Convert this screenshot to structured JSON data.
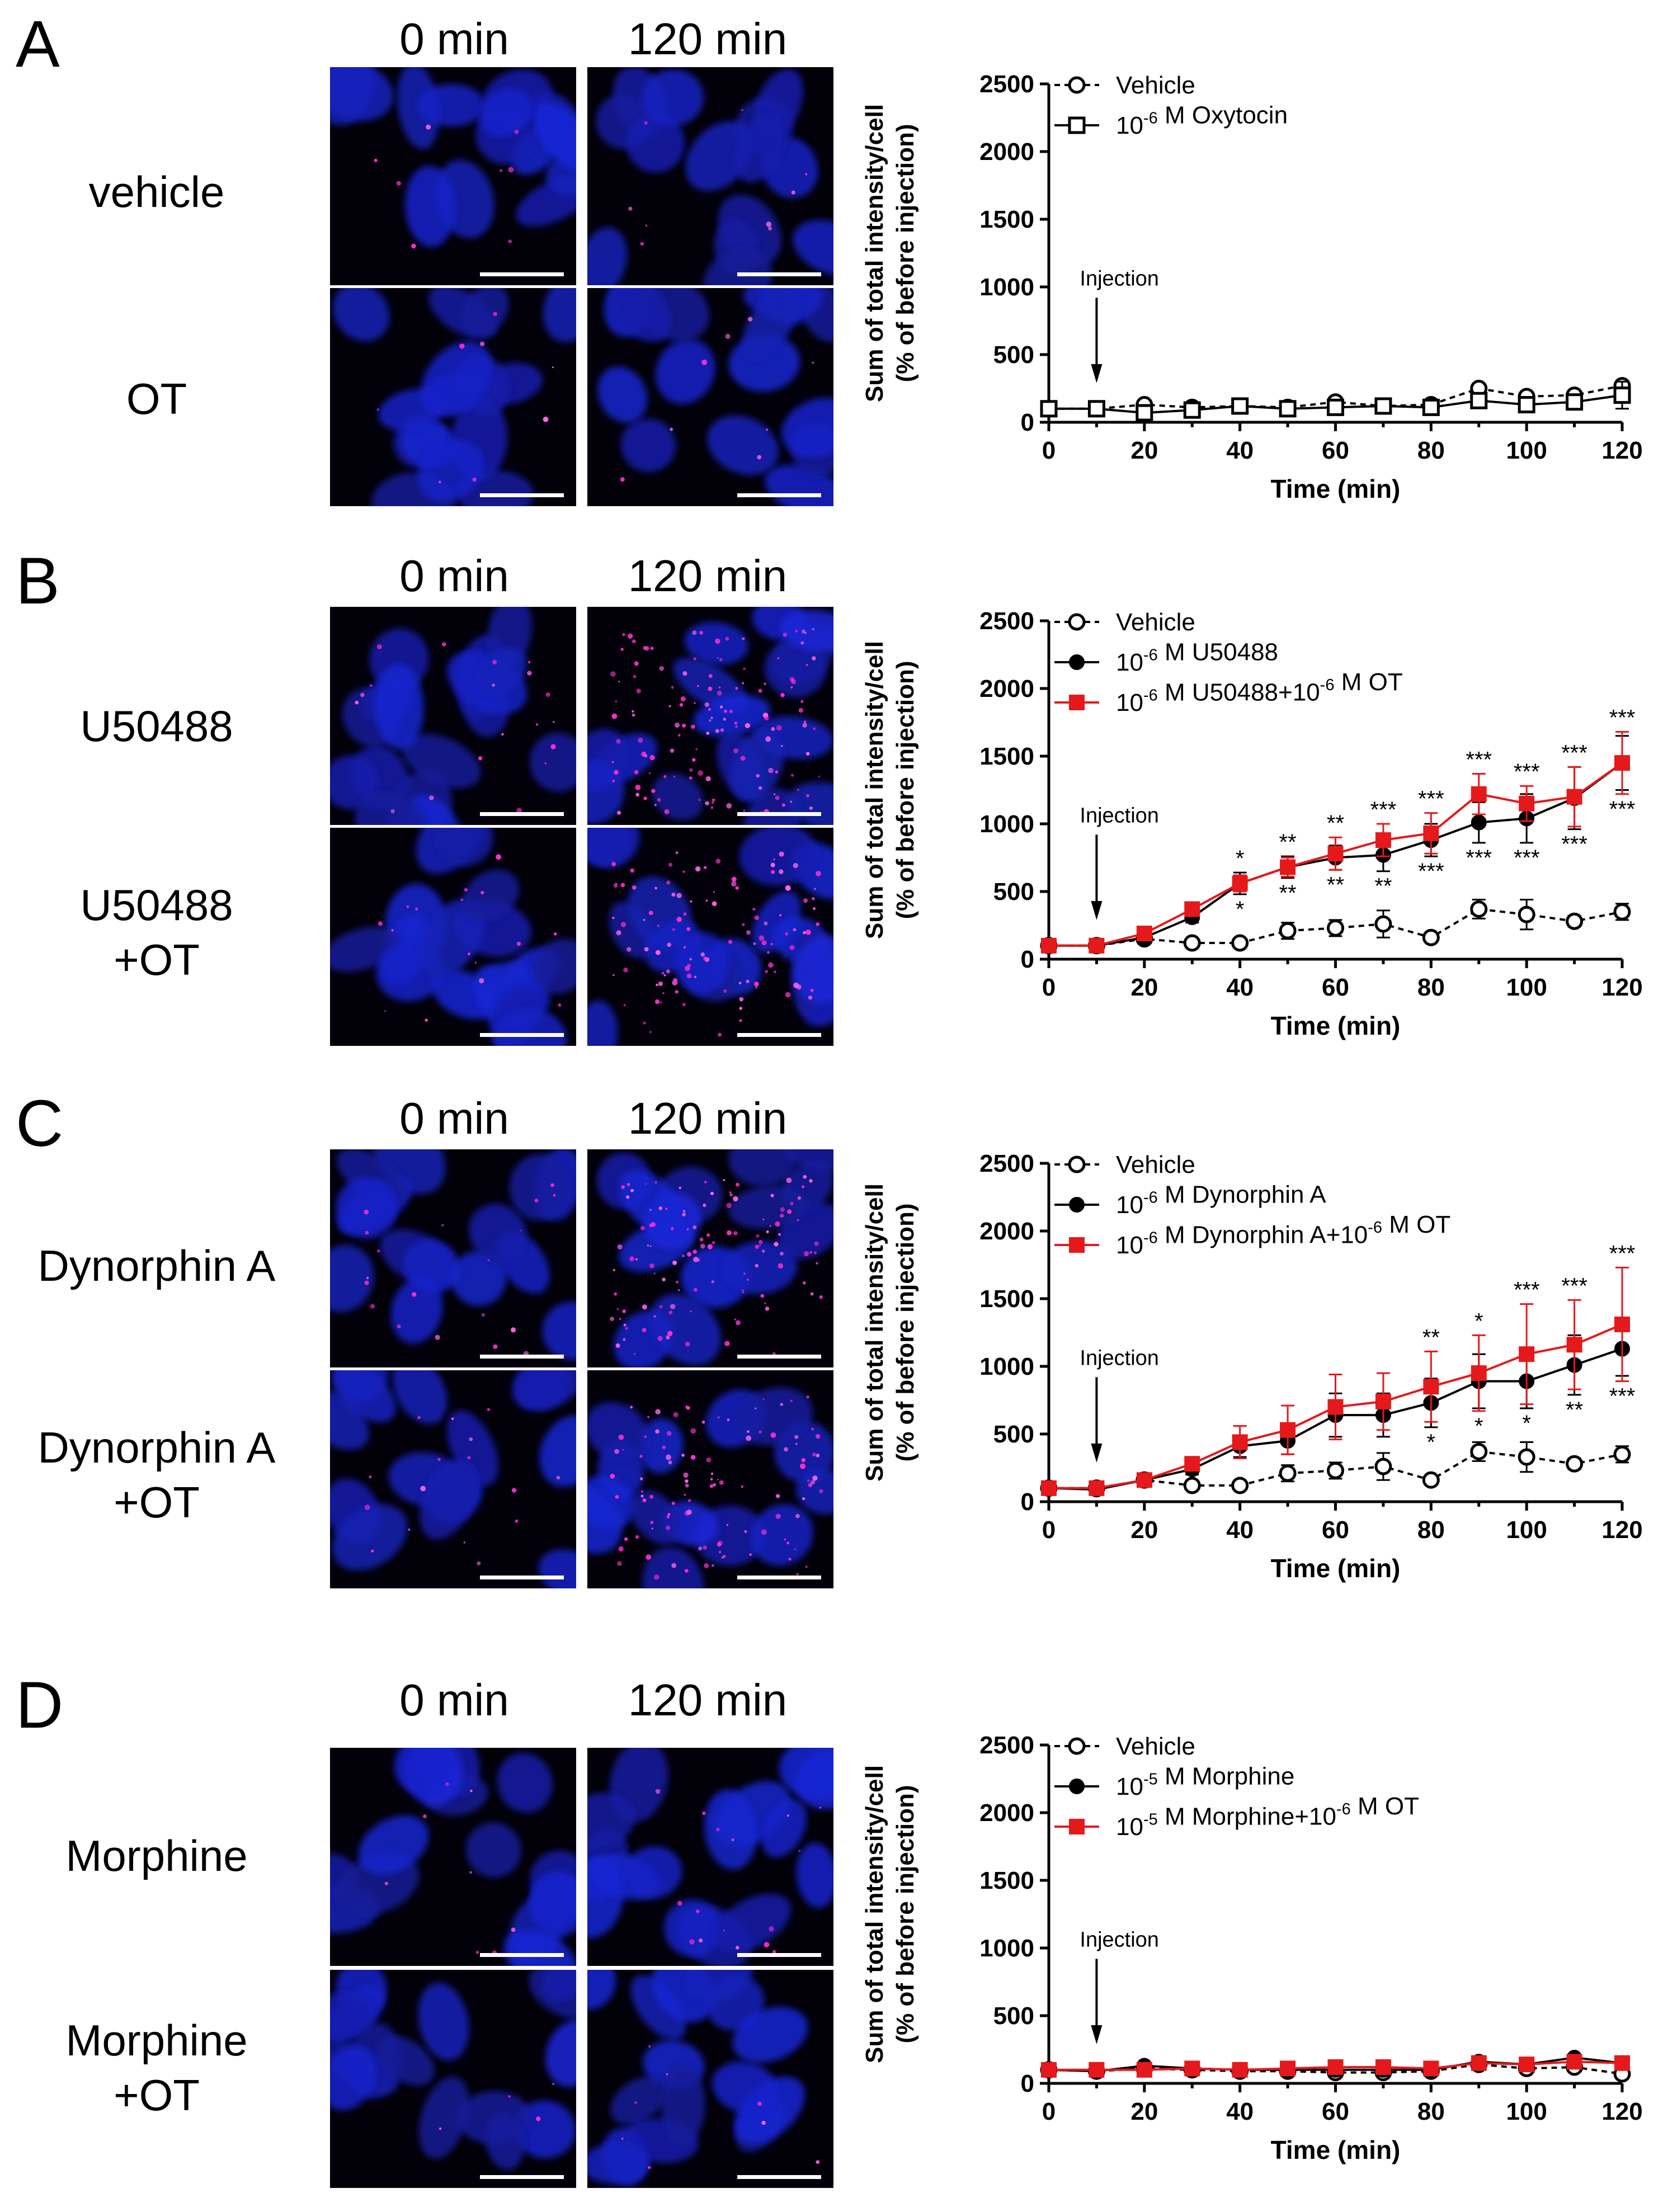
{
  "panels": [
    {
      "letter": "A",
      "col_labels": [
        "0 min",
        "120 min"
      ],
      "rows": [
        {
          "label_lines": [
            "vehicle"
          ],
          "puncta": [
            0.05,
            0.06
          ]
        },
        {
          "label_lines": [
            "OT"
          ],
          "puncta": [
            0.05,
            0.05
          ]
        }
      ]
    },
    {
      "letter": "B",
      "col_labels": [
        "0 min",
        "120 min"
      ],
      "rows": [
        {
          "label_lines": [
            "U50488"
          ],
          "puncta": [
            0.12,
            0.85
          ]
        },
        {
          "label_lines": [
            "U50488",
            "+OT"
          ],
          "puncta": [
            0.1,
            0.7
          ]
        }
      ]
    },
    {
      "letter": "C",
      "col_labels": [
        "0 min",
        "120 min"
      ],
      "rows": [
        {
          "label_lines": [
            "Dynorphin A"
          ],
          "puncta": [
            0.12,
            0.75
          ]
        },
        {
          "label_lines": [
            "Dynorphin A",
            "+OT"
          ],
          "puncta": [
            0.1,
            0.65
          ]
        }
      ]
    },
    {
      "letter": "D",
      "col_labels": [
        "0 min",
        "120 min"
      ],
      "rows": [
        {
          "label_lines": [
            "Morphine"
          ],
          "puncta": [
            0.05,
            0.1
          ]
        },
        {
          "label_lines": [
            "Morphine",
            "+OT"
          ],
          "puncta": [
            0.03,
            0.05
          ]
        }
      ]
    }
  ],
  "chart_data": [
    {
      "type": "line",
      "xlabel": "Time (min)",
      "ylabel": [
        "Sum of total intensity/cell",
        "(% of before injection)"
      ],
      "xlim": [
        0,
        120
      ],
      "ylim": [
        0,
        2500
      ],
      "xticks": [
        0,
        20,
        40,
        60,
        80,
        100,
        120
      ],
      "yticks": [
        0,
        500,
        1000,
        1500,
        2000,
        2500
      ],
      "x": [
        0,
        10,
        20,
        30,
        40,
        50,
        60,
        70,
        80,
        90,
        100,
        110,
        120
      ],
      "annotation": "Injection",
      "annotation_x": 10,
      "legend_position": "top-left",
      "series": [
        {
          "name": "Vehicle",
          "marker": "open-circle",
          "line": "dashed",
          "color": "#000000",
          "values": [
            100,
            100,
            130,
            110,
            120,
            110,
            150,
            120,
            130,
            250,
            190,
            200,
            270
          ],
          "errors": [
            0,
            0,
            10,
            10,
            10,
            10,
            15,
            10,
            10,
            30,
            20,
            20,
            25
          ]
        },
        {
          "name": "Oxytocin",
          "legend_text": "10^-6 M Oxytocin",
          "marker": "open-square",
          "line": "solid",
          "color": "#000000",
          "values": [
            100,
            100,
            70,
            90,
            120,
            100,
            110,
            120,
            110,
            160,
            130,
            150,
            200
          ],
          "errors": [
            0,
            0,
            10,
            10,
            10,
            10,
            10,
            10,
            10,
            20,
            20,
            20,
            100
          ]
        }
      ],
      "significance": []
    },
    {
      "type": "line",
      "xlabel": "Time (min)",
      "ylabel": [
        "Sum of total intensity/cell",
        "(% of before injection)"
      ],
      "xlim": [
        0,
        120
      ],
      "ylim": [
        0,
        2500
      ],
      "xticks": [
        0,
        20,
        40,
        60,
        80,
        100,
        120
      ],
      "yticks": [
        0,
        500,
        1000,
        1500,
        2000,
        2500
      ],
      "x": [
        0,
        10,
        20,
        30,
        40,
        50,
        60,
        70,
        80,
        90,
        100,
        110,
        120
      ],
      "annotation": "Injection",
      "annotation_x": 10,
      "legend_position": "top-left",
      "series": [
        {
          "name": "Vehicle",
          "marker": "open-circle",
          "line": "dashed",
          "color": "#000000",
          "values": [
            100,
            100,
            150,
            120,
            120,
            210,
            230,
            260,
            160,
            370,
            330,
            280,
            350
          ],
          "errors": [
            10,
            10,
            20,
            20,
            20,
            60,
            60,
            100,
            30,
            70,
            110,
            40,
            60
          ]
        },
        {
          "name": "U50488",
          "legend_text": "10^-6 M U50488",
          "marker": "filled-circle",
          "line": "solid",
          "color": "#000000",
          "values": [
            100,
            100,
            160,
            310,
            560,
            680,
            750,
            770,
            880,
            1010,
            1040,
            1190,
            1450
          ],
          "errors": [
            10,
            10,
            20,
            40,
            80,
            80,
            90,
            120,
            120,
            150,
            180,
            230,
            200
          ]
        },
        {
          "name": "U50488+OT",
          "legend_text": "10^-6 M U50488+10^-6 M OT",
          "marker": "filled-square",
          "line": "solid",
          "color": "#e5191b",
          "values": [
            100,
            100,
            190,
            370,
            560,
            680,
            780,
            880,
            930,
            1220,
            1150,
            1200,
            1450
          ],
          "errors": [
            10,
            10,
            20,
            40,
            60,
            70,
            120,
            120,
            150,
            150,
            130,
            220,
            230
          ]
        }
      ],
      "significance": [
        {
          "x": 40,
          "above": "*",
          "below": "*"
        },
        {
          "x": 50,
          "above": "**",
          "below": "**"
        },
        {
          "x": 60,
          "above": "**",
          "below": "**"
        },
        {
          "x": 70,
          "above": "***",
          "below": "**"
        },
        {
          "x": 80,
          "above": "***",
          "below": "***"
        },
        {
          "x": 90,
          "above": "***",
          "below": "***"
        },
        {
          "x": 100,
          "above": "***",
          "below": "***"
        },
        {
          "x": 110,
          "above": "***",
          "below": "***"
        },
        {
          "x": 120,
          "above": "***",
          "below": "***"
        }
      ]
    },
    {
      "type": "line",
      "xlabel": "Time (min)",
      "ylabel": [
        "Sum of total intensity/cell",
        "(% of before injection)"
      ],
      "xlim": [
        0,
        120
      ],
      "ylim": [
        0,
        2500
      ],
      "xticks": [
        0,
        20,
        40,
        60,
        80,
        100,
        120
      ],
      "yticks": [
        0,
        500,
        1000,
        1500,
        2000,
        2500
      ],
      "x": [
        0,
        10,
        20,
        30,
        40,
        50,
        60,
        70,
        80,
        90,
        100,
        110,
        120
      ],
      "annotation": "Injection",
      "annotation_x": 10,
      "legend_position": "top-left",
      "series": [
        {
          "name": "Vehicle",
          "marker": "open-circle",
          "line": "dashed",
          "color": "#000000",
          "values": [
            100,
            100,
            160,
            120,
            120,
            210,
            230,
            260,
            160,
            370,
            330,
            280,
            350
          ],
          "errors": [
            10,
            10,
            20,
            20,
            20,
            60,
            60,
            100,
            30,
            70,
            110,
            40,
            60
          ]
        },
        {
          "name": "Dynorphin A",
          "legend_text": "10^-6 M Dynorphin A",
          "marker": "filled-circle",
          "line": "solid",
          "color": "#000000",
          "values": [
            100,
            90,
            160,
            240,
            410,
            450,
            640,
            640,
            730,
            890,
            890,
            1010,
            1130
          ],
          "errors": [
            10,
            10,
            20,
            40,
            80,
            100,
            160,
            160,
            180,
            200,
            200,
            220,
            200
          ]
        },
        {
          "name": "Dynorphin A+OT",
          "legend_text": "10^-6 M Dynorphin A+10^-6 M OT",
          "marker": "filled-square",
          "line": "solid",
          "color": "#e5191b",
          "values": [
            100,
            100,
            160,
            280,
            440,
            530,
            700,
            740,
            850,
            950,
            1090,
            1160,
            1310
          ],
          "errors": [
            10,
            10,
            20,
            40,
            120,
            180,
            240,
            210,
            260,
            280,
            370,
            330,
            420
          ]
        }
      ],
      "significance": [
        {
          "x": 80,
          "above": "**",
          "below": "*"
        },
        {
          "x": 90,
          "above": "*",
          "below": "*"
        },
        {
          "x": 100,
          "above": "***",
          "below": "*"
        },
        {
          "x": 110,
          "above": "***",
          "below": "**"
        },
        {
          "x": 120,
          "above": "***",
          "below": "***"
        }
      ]
    },
    {
      "type": "line",
      "xlabel": "Time (min)",
      "ylabel": [
        "Sum of total intensity/cell",
        "(% of before injection)"
      ],
      "xlim": [
        0,
        120
      ],
      "ylim": [
        0,
        2500
      ],
      "xticks": [
        0,
        20,
        40,
        60,
        80,
        100,
        120
      ],
      "yticks": [
        0,
        500,
        1000,
        1500,
        2000,
        2500
      ],
      "x": [
        0,
        10,
        20,
        30,
        40,
        50,
        60,
        70,
        80,
        90,
        100,
        110,
        120
      ],
      "annotation": "Injection",
      "annotation_x": 10,
      "legend_position": "top-left",
      "series": [
        {
          "name": "Vehicle",
          "marker": "open-circle",
          "line": "dashed",
          "color": "#000000",
          "values": [
            100,
            90,
            110,
            100,
            90,
            90,
            80,
            80,
            90,
            140,
            110,
            120,
            70
          ],
          "errors": [
            10,
            10,
            10,
            10,
            10,
            10,
            10,
            10,
            10,
            20,
            10,
            10,
            10
          ]
        },
        {
          "name": "Morphine",
          "legend_text": "10^-5 M Morphine",
          "marker": "filled-circle",
          "line": "solid",
          "color": "#000000",
          "values": [
            100,
            90,
            130,
            110,
            100,
            100,
            100,
            100,
            100,
            160,
            140,
            190,
            150
          ],
          "errors": [
            10,
            10,
            10,
            10,
            10,
            10,
            10,
            10,
            10,
            20,
            20,
            20,
            20
          ]
        },
        {
          "name": "Morphine+OT",
          "legend_text": "10^-5 M Morphine+10^-6 M OT",
          "marker": "filled-square",
          "line": "solid",
          "color": "#e5191b",
          "values": [
            100,
            100,
            100,
            110,
            100,
            110,
            120,
            120,
            110,
            150,
            140,
            160,
            150
          ],
          "errors": [
            10,
            10,
            10,
            10,
            10,
            10,
            10,
            10,
            10,
            20,
            20,
            20,
            20
          ]
        }
      ],
      "significance": []
    }
  ]
}
